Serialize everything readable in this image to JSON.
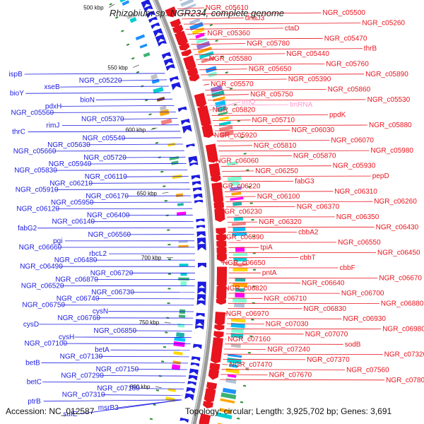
{
  "title": "Rhizobium sp. NGR234, complete genome",
  "footer": {
    "accession": "Accession: NC_012587",
    "summary": "Topology: circular; Length: 3,925,702 bp; Genes: 3,691"
  },
  "colors": {
    "forward_strand": "#e8141e",
    "reverse_strand": "#1c1ce0",
    "backbone": "#888888",
    "trna": "#ff99cc",
    "tick": "#2e8b2e"
  },
  "scale_ticks": [
    "500 kbp",
    "550 kbp",
    "600 kbp",
    "650 kbp",
    "700 kbp",
    "750 kbp",
    "800 kbp"
  ],
  "labels_left": [
    "ispB",
    "NGR_c05220",
    "xseB",
    "bioY",
    "bioN",
    "pdxH",
    "NGR_c05560",
    "NGR_c05370",
    "rimJ",
    "thrC",
    "NGR_c05540",
    "NGR_c05630",
    "NGR_c05660",
    "NGR_c05720",
    "NGR_c05940",
    "NGR_c05830",
    "NGR_c06110",
    "NGR_c06210",
    "NGR_c05910",
    "NGR_c06170",
    "NGR_c05950",
    "NGR_c06120",
    "NGR_c06400",
    "NGR_c06140",
    "fabG2",
    "NGR_c06560",
    "pgi",
    "NGR_c06660",
    "rbcL2",
    "NGR_c06480",
    "NGR_c06490",
    "NGR_c06720",
    "NGR_c06870",
    "NGR_c06520",
    "NGR_c06730",
    "NGR_c06740",
    "NGR_c06750",
    "cysN",
    "NGR_c06760",
    "cysD",
    "NGR_c06850",
    "cysH",
    "NGR_c07100",
    "betA",
    "NGR_c07130",
    "betB",
    "NGR_c07150",
    "NGR_c07290",
    "betC",
    "NGR_c07180",
    "NGR_c07310",
    "ptrB",
    "msrB3",
    "sufE"
  ],
  "labels_right": [
    "NGR_c05610",
    "NGR_c05500",
    "dnaJ3",
    "NGR_c05260",
    "ctaD",
    "NGR_c05360",
    "NGR_c05470",
    "NGR_c05780",
    "thrB",
    "NGR_c05440",
    "NGR_c05580",
    "NGR_c05760",
    "NGR_c05650",
    "NGR_c05890",
    "NGR_c05390",
    "NGR_c05570",
    "NGR_c05860",
    "NGR_c05750",
    "NGR_c05530",
    "tmRNA",
    "NGR_c05820",
    "ppdK",
    "NGR_c05710",
    "NGR_c05880",
    "NGR_c06030",
    "NGR_c05920",
    "NGR_c06070",
    "NGR_c05810",
    "NGR_c05980",
    "NGR_c05870",
    "NGR_c06060",
    "NGR_c05930",
    "NGR_c06250",
    "pepD",
    "fabG3",
    "NGR_c06220",
    "NGR_c06310",
    "NGR_c06100",
    "NGR_c06260",
    "NGR_c06370",
    "NGR_c06230",
    "NGR_c06350",
    "NGR_c06320",
    "NGR_c06430",
    "cbbA2",
    "NGR_c06390",
    "NGR_c06550",
    "tpiA",
    "NGR_c06450",
    "cbbT",
    "NGR_c06650",
    "cbbF",
    "pntA",
    "NGR_c06670",
    "NGR_c06640",
    "NGR_c06820",
    "NGR_c06700",
    "NGR_c06710",
    "NGR_c06880",
    "NGR_c06830",
    "NGR_c06970",
    "NGR_c06930",
    "NGR_c07030",
    "NGR_c06980",
    "NGR_c07070",
    "NGR_c07160",
    "sodB",
    "NGR_c07240",
    "NGR_c07320",
    "NGR_c07370",
    "NGR_c07470",
    "NGR_c07560",
    "NGR_c07670",
    "NGR_c07800"
  ],
  "trna_labels": [
    "trnQ"
  ]
}
